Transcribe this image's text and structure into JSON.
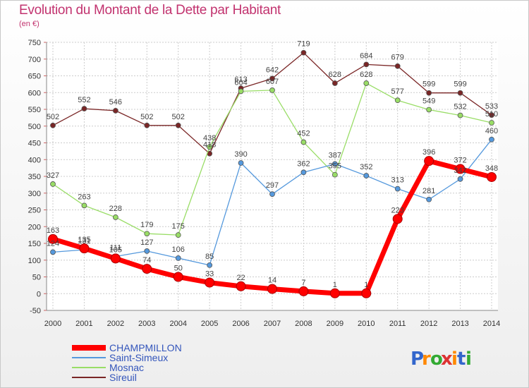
{
  "title": "Evolution du Montant de la Dette par Habitant",
  "unit": "(en €)",
  "logo_text": "Proxiti",
  "chart_data": {
    "type": "line",
    "title": "Evolution du Montant de la Dette par Habitant",
    "subtitle": "(en €)",
    "x": [
      2000,
      2001,
      2002,
      2003,
      2004,
      2005,
      2006,
      2007,
      2008,
      2009,
      2010,
      2011,
      2012,
      2013,
      2014
    ],
    "ylim": [
      -50,
      750
    ],
    "yticks": [
      -50,
      0,
      50,
      100,
      150,
      200,
      250,
      300,
      350,
      400,
      450,
      500,
      550,
      600,
      650,
      700,
      750
    ],
    "grid": true,
    "legend_position": "bottom-left",
    "series": [
      {
        "name": "Sireuil",
        "color": "#7a2626",
        "thick": false,
        "values": [
          502,
          552,
          546,
          502,
          502,
          418,
          613,
          642,
          719,
          628,
          684,
          679,
          599,
          599,
          533
        ]
      },
      {
        "name": "Mosnac",
        "color": "#99dd66",
        "thick": false,
        "values": [
          327,
          263,
          228,
          179,
          175,
          438,
          604,
          607,
          452,
          355,
          628,
          577,
          549,
          532,
          510
        ]
      },
      {
        "name": "Saint-Simeux",
        "color": "#5599dd",
        "thick": false,
        "values": [
          124,
          131,
          111,
          127,
          106,
          85,
          390,
          297,
          362,
          387,
          352,
          313,
          281,
          342,
          460
        ]
      },
      {
        "name": "CHAMPMILLON",
        "color": "#ff0000",
        "thick": true,
        "values": [
          163,
          135,
          105,
          74,
          50,
          33,
          22,
          14,
          7,
          1,
          1,
          223,
          396,
          372,
          348
        ]
      }
    ],
    "legend_order": [
      "CHAMPMILLON",
      "Saint-Simeux",
      "Mosnac",
      "Sireuil"
    ]
  }
}
